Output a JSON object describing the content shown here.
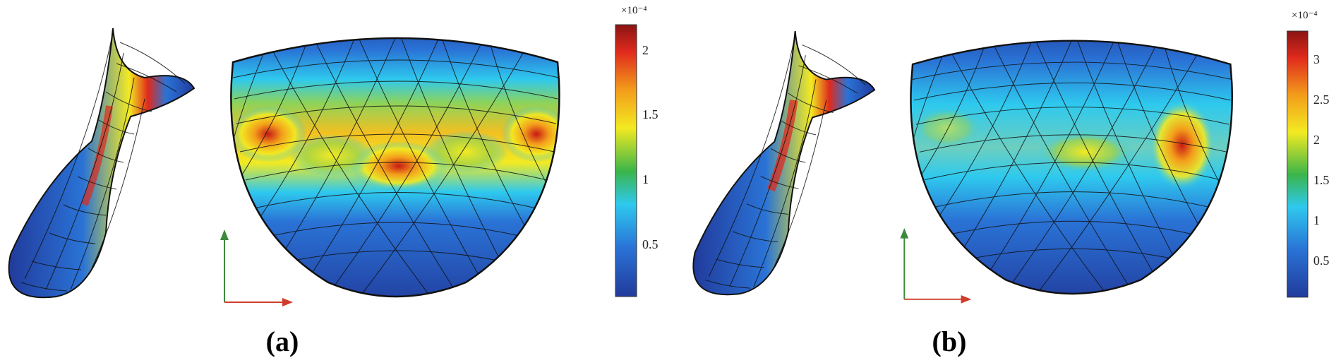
{
  "panels": [
    {
      "id": "a",
      "caption": "(a)",
      "colorbar": {
        "multiplier": "×10⁻⁴",
        "min": 0.1,
        "max": 2.2,
        "ticks": [
          {
            "value": 0.5,
            "label": "0.5"
          },
          {
            "value": 1,
            "label": "1"
          },
          {
            "value": 1.5,
            "label": "1.5"
          },
          {
            "value": 2,
            "label": "2"
          }
        ]
      }
    },
    {
      "id": "b",
      "caption": "(b)",
      "colorbar": {
        "multiplier": "×10⁻⁴",
        "min": 0.1,
        "max": 3.4,
        "ticks": [
          {
            "value": 0.5,
            "label": "0.5"
          },
          {
            "value": 1,
            "label": "1"
          },
          {
            "value": 1.5,
            "label": "1.5"
          },
          {
            "value": 2,
            "label": "2"
          },
          {
            "value": 2.5,
            "label": "2.5"
          },
          {
            "value": 3,
            "label": "3"
          }
        ]
      }
    }
  ],
  "colormap": [
    "#213b9c",
    "#2a73d6",
    "#2ec9ee",
    "#3ab54a",
    "#f3ea21",
    "#f39c1b",
    "#e02a1c",
    "#8a1414"
  ],
  "axes_colors": {
    "vertical": "#3c8a3c",
    "horizontal": "#d03b2b"
  }
}
